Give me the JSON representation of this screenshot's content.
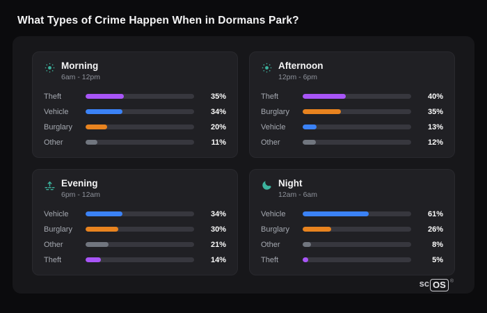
{
  "page": {
    "title": "What Types of Crime Happen When in Dormans Park?"
  },
  "brand": {
    "prefix": "sc",
    "boxed": "OS",
    "mark": "®"
  },
  "colors": {
    "theft": "#a855f7",
    "vehicle": "#3b82f6",
    "burglary": "#e8831f",
    "other": "#71767f",
    "icon_accent": "#3cb39e",
    "background": "#0b0b0d",
    "panel": "#17171a",
    "card": "#202024",
    "bar_track": "#37373e"
  },
  "chart_data": {
    "type": "bar",
    "title": "What Types of Crime Happen When in Dormans Park?",
    "value_format": "percent",
    "xlim": [
      0,
      100
    ],
    "legend_position": "none",
    "groups": [
      {
        "name": "Morning",
        "time_range": "6am - 12pm",
        "icon": "sun-icon",
        "bars": [
          {
            "label": "Theft",
            "value": 35,
            "category": "theft"
          },
          {
            "label": "Vehicle",
            "value": 34,
            "category": "vehicle"
          },
          {
            "label": "Burglary",
            "value": 20,
            "category": "burglary"
          },
          {
            "label": "Other",
            "value": 11,
            "category": "other"
          }
        ]
      },
      {
        "name": "Afternoon",
        "time_range": "12pm - 6pm",
        "icon": "sun-icon",
        "bars": [
          {
            "label": "Theft",
            "value": 40,
            "category": "theft"
          },
          {
            "label": "Burglary",
            "value": 35,
            "category": "burglary"
          },
          {
            "label": "Vehicle",
            "value": 13,
            "category": "vehicle"
          },
          {
            "label": "Other",
            "value": 12,
            "category": "other"
          }
        ]
      },
      {
        "name": "Evening",
        "time_range": "6pm - 12am",
        "icon": "sunset-icon",
        "bars": [
          {
            "label": "Vehicle",
            "value": 34,
            "category": "vehicle"
          },
          {
            "label": "Burglary",
            "value": 30,
            "category": "burglary"
          },
          {
            "label": "Other",
            "value": 21,
            "category": "other"
          },
          {
            "label": "Theft",
            "value": 14,
            "category": "theft"
          }
        ]
      },
      {
        "name": "Night",
        "time_range": "12am - 6am",
        "icon": "moon-icon",
        "bars": [
          {
            "label": "Vehicle",
            "value": 61,
            "category": "vehicle"
          },
          {
            "label": "Burglary",
            "value": 26,
            "category": "burglary"
          },
          {
            "label": "Other",
            "value": 8,
            "category": "other"
          },
          {
            "label": "Theft",
            "value": 5,
            "category": "theft"
          }
        ]
      }
    ]
  }
}
